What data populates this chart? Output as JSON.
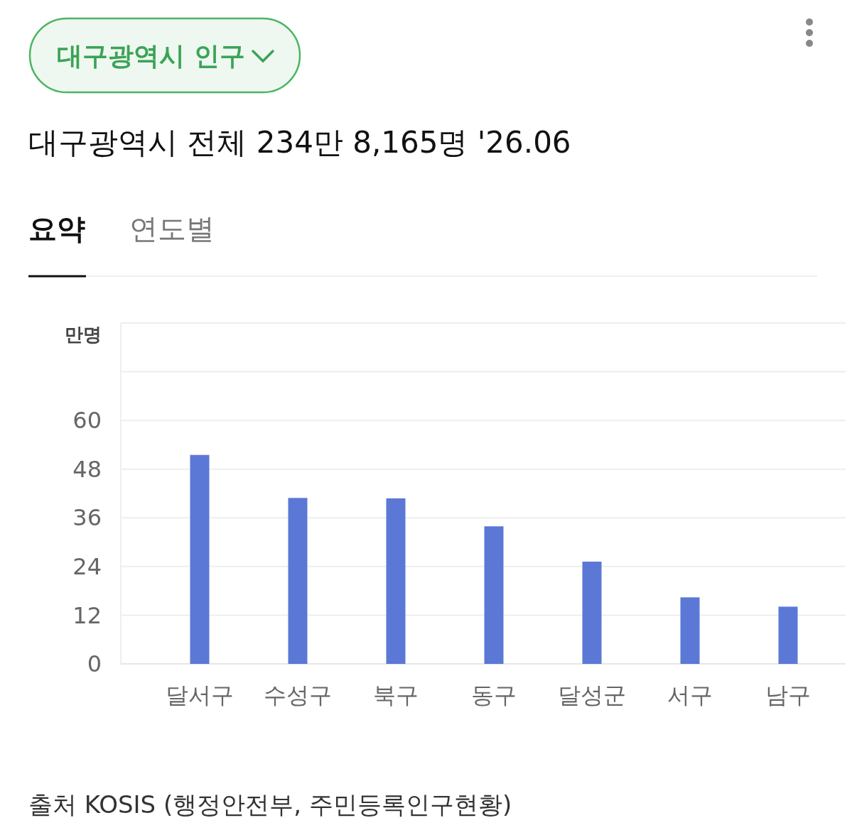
{
  "chart_data": {
    "type": "bar",
    "title": "대구광역시 인구",
    "subtitle": "대구광역시 전체 234만 8,165명 '26.06",
    "ylabel": "만명",
    "annotations": [
      "요약",
      "연도별",
      "출처 KOSIS (행정안전부, 주민등록인구현황)"
    ],
    "categories": [
      "달서구",
      "수성구",
      "북구",
      "동구",
      "달성군",
      "서구",
      "남구"
    ],
    "values": [
      51.5,
      40.9,
      40.8,
      33.9,
      25.2,
      16.4,
      14.1
    ],
    "color": "#5b78d6",
    "ylim": [
      0,
      84
    ],
    "yticks": [
      0,
      12,
      24,
      36,
      48,
      60,
      {
        "value": 72,
        "label": null
      },
      {
        "value": 84,
        "label": null
      }
    ],
    "grid": "y"
  }
}
